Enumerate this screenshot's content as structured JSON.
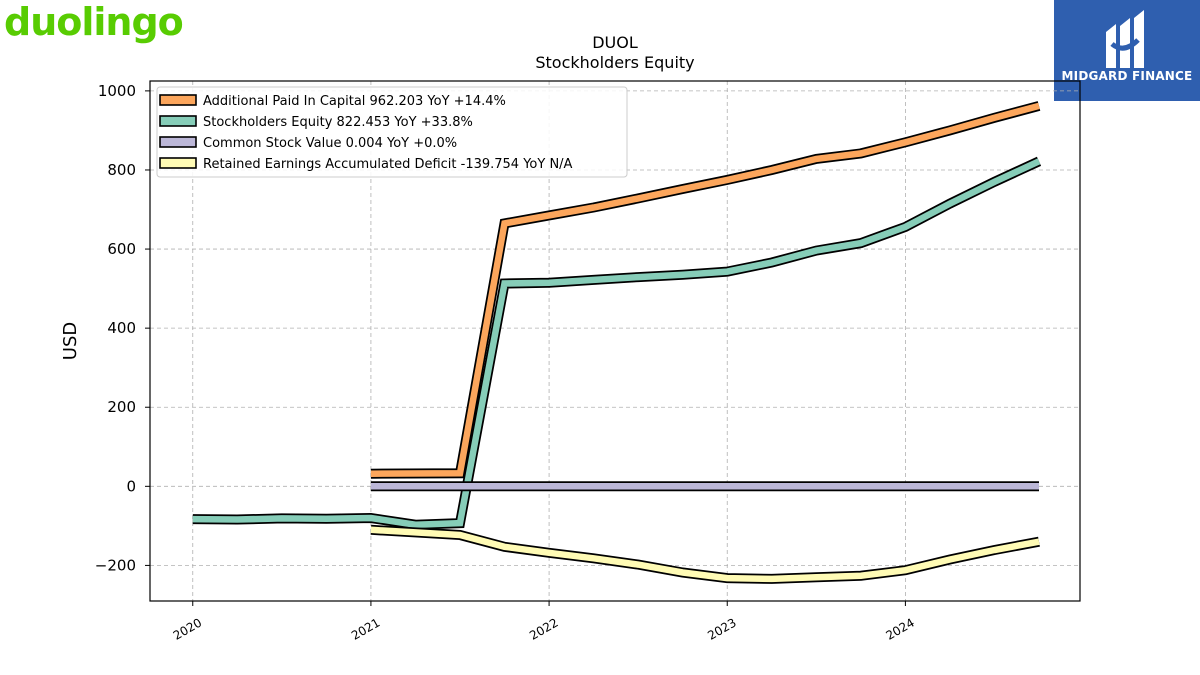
{
  "brand": {
    "logo_text": "duolingo",
    "logo_color": "#58cc02"
  },
  "badge": {
    "text": "MIDGARD FINANCE",
    "bg_color": "#2f5faf"
  },
  "chart_data": {
    "type": "line",
    "title": "DUOL",
    "subtitle": "Stockholders  Equity",
    "ylabel": "USD",
    "xlabel": "",
    "ylim": [
      -290,
      1025
    ],
    "xlim": [
      2019.76,
      2024.98
    ],
    "yticks": [
      -200,
      0,
      200,
      400,
      600,
      800,
      1000
    ],
    "ytick_labels": [
      "−200",
      "0",
      "200",
      "400",
      "600",
      "800",
      "1000"
    ],
    "xticks": [
      2020,
      2021,
      2022,
      2023,
      2024
    ],
    "xtick_labels": [
      "2020",
      "2021",
      "2022",
      "2023",
      "2024"
    ],
    "grid": true,
    "legend_position": "top-left",
    "series": [
      {
        "name": "Additional Paid In Capital  962.203 YoY +14.4%",
        "color": "#fca65c",
        "x": [
          2021.0,
          2021.5,
          2021.75,
          2022.0,
          2022.25,
          2022.5,
          2022.75,
          2023.0,
          2023.25,
          2023.5,
          2023.75,
          2024.0,
          2024.25,
          2024.5,
          2024.75
        ],
        "values": [
          32,
          33,
          665,
          685,
          705,
          728,
          752,
          775,
          800,
          828,
          842,
          870,
          900,
          932,
          962
        ]
      },
      {
        "name": "Stockholders Equity  822.453 YoY +33.8%",
        "color": "#86cdb8",
        "x": [
          2020.0,
          2020.25,
          2020.5,
          2020.75,
          2021.0,
          2021.25,
          2021.5,
          2021.75,
          2022.0,
          2022.25,
          2022.5,
          2022.75,
          2023.0,
          2023.25,
          2023.5,
          2023.75,
          2024.0,
          2024.25,
          2024.5,
          2024.75
        ],
        "values": [
          -83,
          -84,
          -81,
          -82,
          -80,
          -97,
          -93,
          513,
          515,
          522,
          529,
          535,
          543,
          566,
          596,
          615,
          656,
          715,
          770,
          822
        ]
      },
      {
        "name": "Common Stock Value  0.004 YoY +0.0%",
        "color": "#bcb7d8",
        "x": [
          2021.0,
          2024.75
        ],
        "values": [
          0.004,
          0.004
        ]
      },
      {
        "name": "Retained Earnings Accumulated Deficit  -139.754 YoY N/A",
        "color": "#fffbb5",
        "x": [
          2021.0,
          2021.5,
          2021.75,
          2022.0,
          2022.25,
          2022.5,
          2022.75,
          2023.0,
          2023.25,
          2023.5,
          2023.75,
          2024.0,
          2024.25,
          2024.5,
          2024.75
        ],
        "values": [
          -110,
          -123,
          -153,
          -168,
          -182,
          -198,
          -218,
          -232,
          -234,
          -230,
          -226,
          -212,
          -185,
          -161,
          -140
        ]
      }
    ]
  }
}
